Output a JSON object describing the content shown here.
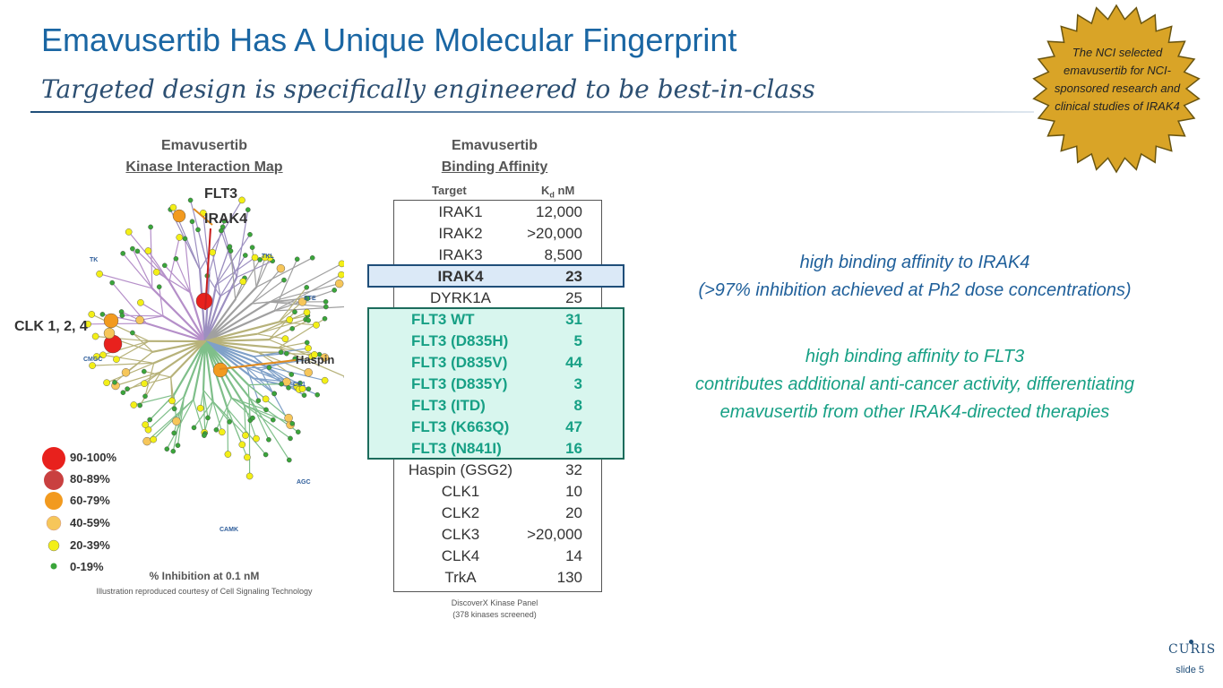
{
  "slide": {
    "title": "Emavusertib Has A Unique Molecular Fingerprint",
    "subtitle": "Targeted design is specifically engineered to be best-in-class",
    "number": "slide 5"
  },
  "badge": {
    "text": "The NCI selected emavusertib for NCI-sponsored research and clinical studies of IRAK4",
    "color": "#d9a427"
  },
  "kinase_map": {
    "heading_line1": "Emavusertib",
    "heading_line2": "Kinase Interaction Map",
    "group_labels": [
      "TK",
      "TKL",
      "STE",
      "CMGC",
      "CK1",
      "AGC",
      "CAMK"
    ],
    "callouts": {
      "flt3": "FLT3",
      "irak4": "IRAK4",
      "clk": "CLK 1, 2, 4",
      "haspin": "Haspin"
    },
    "legend": [
      {
        "label": "90-100%",
        "color": "#e8211d"
      },
      {
        "label": "80-89%",
        "color": "#c94040"
      },
      {
        "label": "60-79%",
        "color": "#f29a1f"
      },
      {
        "label": "40-59%",
        "color": "#f6c65a"
      },
      {
        "label": "20-39%",
        "color": "#f3ef17"
      },
      {
        "label": "0-19%",
        "color": "#3aa53a"
      }
    ],
    "caption": "% Inhibition at 0.1 nM",
    "credit": "Illustration reproduced courtesy of Cell Signaling Technology"
  },
  "binding_table": {
    "heading_line1": "Emavusertib",
    "heading_line2": "Binding Affinity",
    "col_target": "Target",
    "col_kd": "K",
    "col_kd_sub": "d",
    "col_kd_unit": " nM",
    "rows": [
      {
        "target": "IRAK1",
        "value": "12,000"
      },
      {
        "target": "IRAK2",
        "value": ">20,000"
      },
      {
        "target": "IRAK3",
        "value": "8,500"
      },
      {
        "target": "IRAK4",
        "value": "23"
      },
      {
        "target": "DYRK1A",
        "value": "25"
      },
      {
        "target": "FLT3 WT",
        "value": "31"
      },
      {
        "target": "FLT3 (D835H)",
        "value": "5"
      },
      {
        "target": "FLT3 (D835V)",
        "value": "44"
      },
      {
        "target": "FLT3 (D835Y)",
        "value": "3"
      },
      {
        "target": "FLT3 (ITD)",
        "value": "8"
      },
      {
        "target": "FLT3 (K663Q)",
        "value": "47"
      },
      {
        "target": "FLT3 (N841I)",
        "value": "16"
      },
      {
        "target": "Haspin (GSG2)",
        "value": "32"
      },
      {
        "target": "CLK1",
        "value": "10"
      },
      {
        "target": "CLK2",
        "value": "20"
      },
      {
        "target": "CLK3",
        "value": ">20,000"
      },
      {
        "target": "CLK4",
        "value": "14"
      },
      {
        "target": "TrkA",
        "value": "130"
      }
    ],
    "note_line1": "DiscoverX Kinase Panel",
    "note_line2": "(378 kinases screened)"
  },
  "notes": {
    "irak4_line1": "high binding affinity to IRAK4",
    "irak4_line2": "(>97% inhibition achieved at Ph2 dose concentrations)",
    "flt3_line1": "high binding affinity to FLT3",
    "flt3_line2": "contributes additional anti-cancer activity, differentiating",
    "flt3_line3": "emavusertib from other IRAK4-directed therapies"
  },
  "logo": {
    "text": "CURIS"
  }
}
